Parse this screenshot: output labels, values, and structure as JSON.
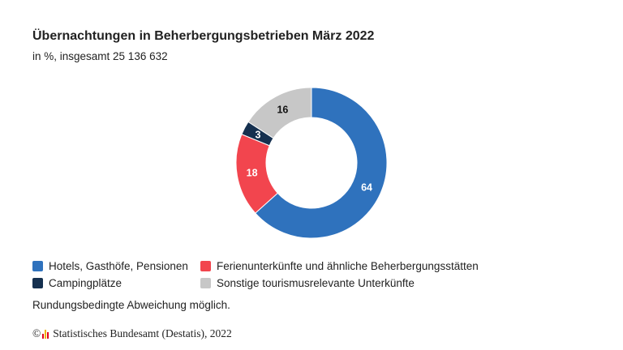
{
  "chart_data": {
    "type": "pie",
    "title": "Übernachtungen in Beherbergungsbetrieben März 2022",
    "subtitle": "in %, insgesamt 25 136 632",
    "categories": [
      "Hotels, Gasthöfe, Pensionen",
      "Ferienunterkünfte und ähnliche Beherbergungsstätten",
      "Campingplätze",
      "Sonstige tourismusrelevante Unterkünfte"
    ],
    "values": [
      64,
      18,
      3,
      16
    ],
    "colors": [
      "#2f72bd",
      "#f2454e",
      "#15304f",
      "#c7c7c7"
    ],
    "label_colors": [
      "#ffffff",
      "#ffffff",
      "#ffffff",
      "#111111"
    ],
    "donut": true,
    "legend_position": "bottom"
  },
  "note": "Rundungsbedingte Abweichung möglich.",
  "source": {
    "copyright": "©",
    "text": "Statistisches Bundesamt (Destatis), 2022",
    "logo_colors": [
      "#e2001a",
      "#f0b400",
      "#e2001a"
    ]
  }
}
